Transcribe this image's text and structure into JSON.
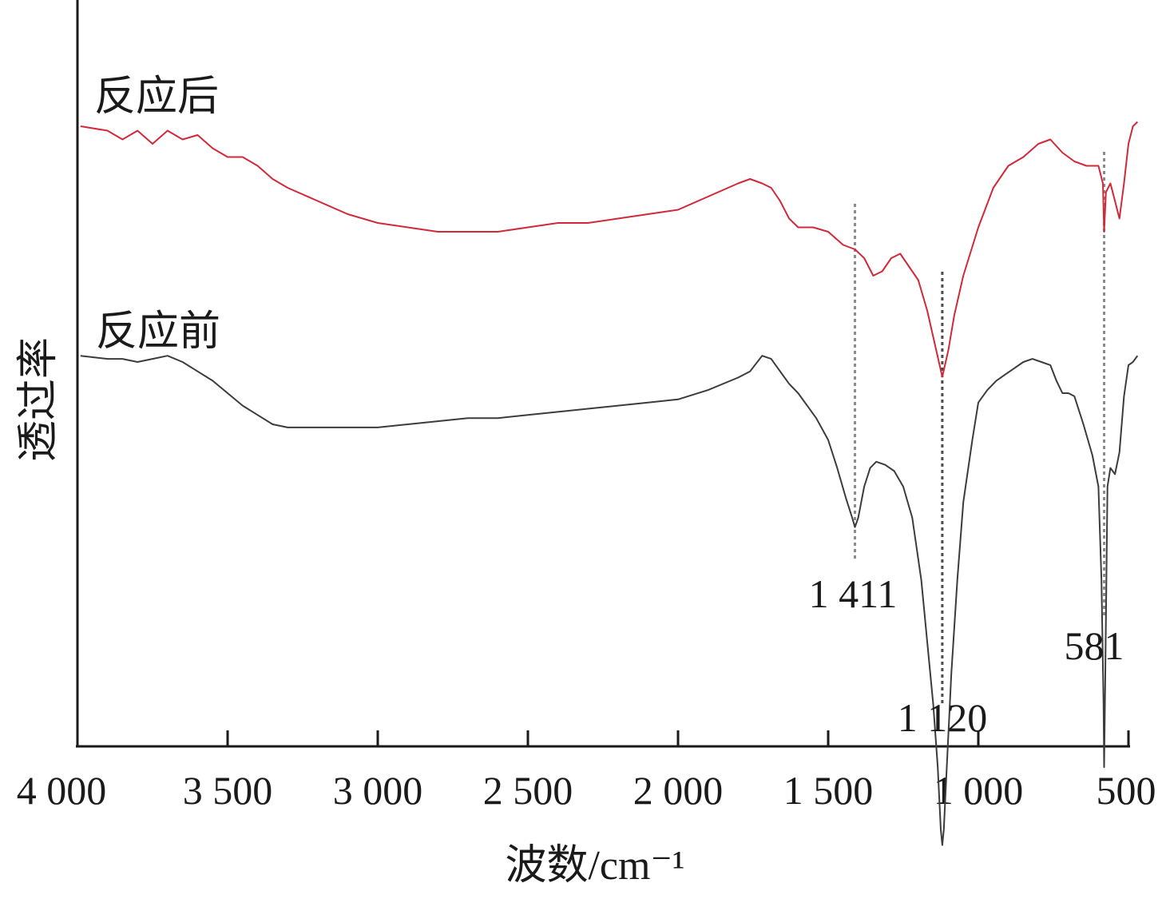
{
  "chart_data": {
    "type": "line",
    "xlabel": "波数/cm⁻¹",
    "ylabel": "透过率",
    "x_reversed": true,
    "xlim": [
      4000,
      460
    ],
    "x_ticks": [
      4000,
      3500,
      3000,
      2500,
      2000,
      1500,
      1000,
      500
    ],
    "x_tick_labels": [
      "4 000",
      "3 500",
      "3 000",
      "2 500",
      "2 000",
      "1 500",
      "1 000",
      "500"
    ],
    "y_ticks_shown": false,
    "grid": false,
    "series": [
      {
        "name": "反应后",
        "color": "#d1293a",
        "x": [
          3990,
          3900,
          3850,
          3800,
          3750,
          3700,
          3650,
          3600,
          3550,
          3500,
          3450,
          3400,
          3350,
          3300,
          3200,
          3100,
          3000,
          2900,
          2800,
          2700,
          2600,
          2500,
          2400,
          2300,
          2200,
          2100,
          2000,
          1900,
          1800,
          1760,
          1720,
          1690,
          1660,
          1630,
          1600,
          1550,
          1500,
          1450,
          1411,
          1380,
          1350,
          1320,
          1290,
          1260,
          1230,
          1200,
          1170,
          1150,
          1130,
          1120,
          1100,
          1080,
          1050,
          1000,
          950,
          900,
          850,
          800,
          760,
          720,
          680,
          640,
          600,
          585,
          581,
          575,
          560,
          545,
          530,
          515,
          500,
          485,
          470
        ],
        "values": [
          0.79,
          0.78,
          0.76,
          0.78,
          0.75,
          0.78,
          0.76,
          0.77,
          0.74,
          0.72,
          0.72,
          0.7,
          0.67,
          0.65,
          0.62,
          0.59,
          0.57,
          0.56,
          0.55,
          0.55,
          0.55,
          0.56,
          0.57,
          0.57,
          0.58,
          0.59,
          0.6,
          0.63,
          0.66,
          0.67,
          0.66,
          0.65,
          0.62,
          0.58,
          0.56,
          0.56,
          0.55,
          0.52,
          0.51,
          0.49,
          0.45,
          0.46,
          0.49,
          0.5,
          0.47,
          0.44,
          0.37,
          0.31,
          0.25,
          0.22,
          0.28,
          0.36,
          0.45,
          0.56,
          0.65,
          0.7,
          0.72,
          0.75,
          0.76,
          0.73,
          0.71,
          0.7,
          0.7,
          0.66,
          0.55,
          0.64,
          0.66,
          0.62,
          0.58,
          0.66,
          0.75,
          0.79,
          0.8
        ]
      },
      {
        "name": "反应前",
        "color": "#3c3c3c",
        "x": [
          3990,
          3900,
          3850,
          3800,
          3750,
          3700,
          3650,
          3600,
          3550,
          3500,
          3450,
          3400,
          3350,
          3300,
          3200,
          3100,
          3000,
          2900,
          2800,
          2700,
          2600,
          2500,
          2400,
          2300,
          2200,
          2100,
          2000,
          1900,
          1800,
          1760,
          1720,
          1690,
          1660,
          1630,
          1600,
          1570,
          1540,
          1500,
          1470,
          1440,
          1420,
          1411,
          1400,
          1380,
          1360,
          1340,
          1310,
          1280,
          1250,
          1220,
          1190,
          1170,
          1150,
          1135,
          1125,
          1120,
          1115,
          1105,
          1090,
          1070,
          1050,
          1020,
          1000,
          970,
          940,
          910,
          880,
          850,
          820,
          790,
          760,
          740,
          720,
          700,
          680,
          650,
          620,
          600,
          590,
          583,
          581,
          577,
          570,
          560,
          545,
          530,
          515,
          500,
          485,
          470
        ],
        "values": [
          0.32,
          0.31,
          0.31,
          0.3,
          0.31,
          0.32,
          0.3,
          0.27,
          0.24,
          0.2,
          0.16,
          0.13,
          0.1,
          0.09,
          0.09,
          0.09,
          0.09,
          0.1,
          0.11,
          0.12,
          0.12,
          0.13,
          0.14,
          0.15,
          0.16,
          0.17,
          0.18,
          0.21,
          0.25,
          0.27,
          0.32,
          0.31,
          0.27,
          0.23,
          0.2,
          0.16,
          0.12,
          0.05,
          -0.04,
          -0.14,
          -0.2,
          -0.23,
          -0.2,
          -0.1,
          -0.04,
          -0.02,
          -0.03,
          -0.05,
          -0.1,
          -0.2,
          -0.4,
          -0.6,
          -0.8,
          -1.0,
          -1.2,
          -1.25,
          -1.2,
          -1.0,
          -0.7,
          -0.4,
          -0.15,
          0.05,
          0.17,
          0.21,
          0.24,
          0.26,
          0.28,
          0.3,
          0.31,
          0.3,
          0.29,
          0.24,
          0.2,
          0.2,
          0.19,
          0.1,
          0.0,
          -0.1,
          -0.4,
          -0.8,
          -1.0,
          -0.7,
          -0.1,
          -0.04,
          -0.06,
          0.01,
          0.19,
          0.29,
          0.3,
          0.32
        ]
      }
    ],
    "annotations": [
      {
        "x": 1411,
        "label": "1 411",
        "line_color": "#8a8a8a"
      },
      {
        "x": 1120,
        "label": "1 120",
        "line_color": "#4a4a4a"
      },
      {
        "x": 581,
        "label": "581",
        "line_color": "#8a8a8a"
      }
    ]
  }
}
